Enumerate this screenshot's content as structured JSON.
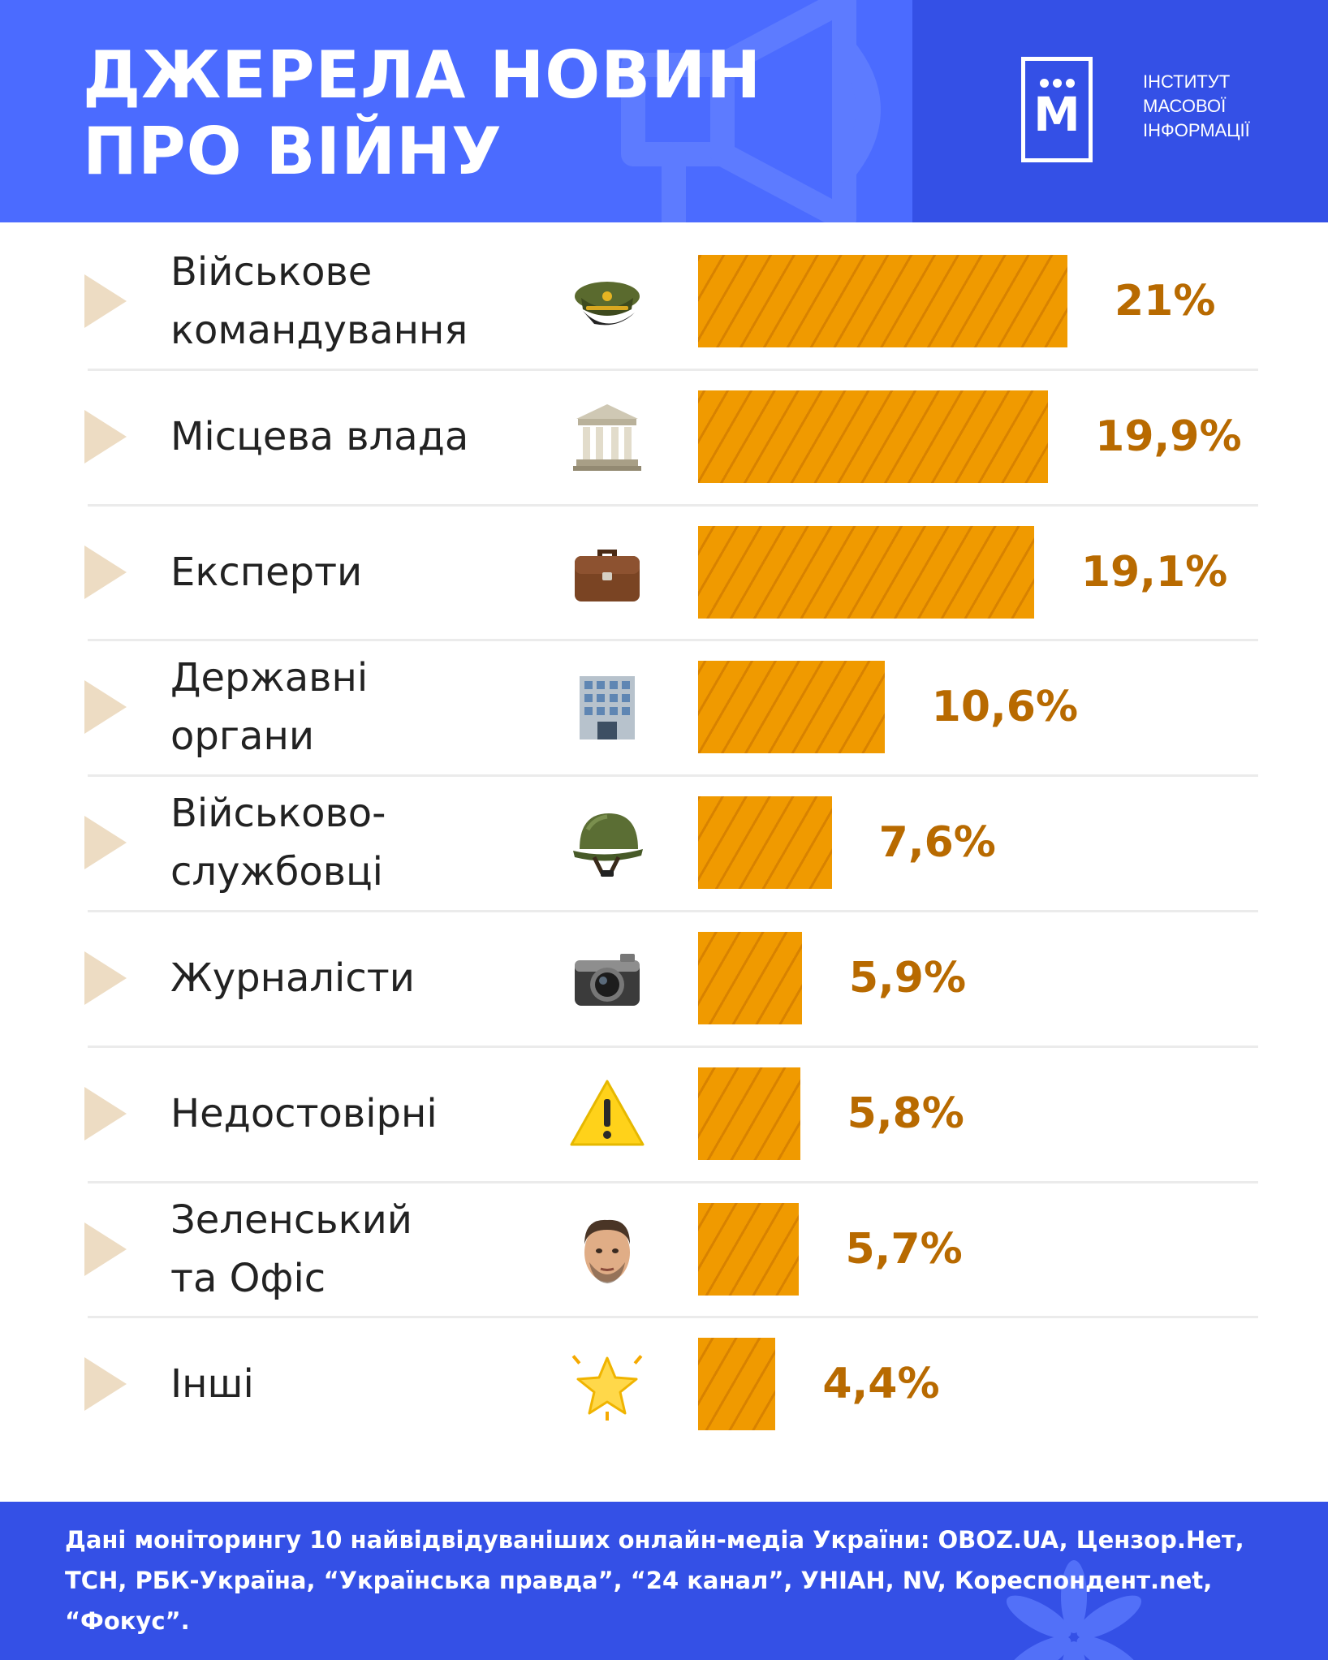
{
  "header": {
    "title_line1": "ДЖЕРЕЛА НОВИН",
    "title_line2": "ПРО ВІЙНУ",
    "logo_letter": "М",
    "logo_line1": "ІНСТИТУТ",
    "logo_line2": "МАСОВОЇ",
    "logo_line3": "ІНФОРМАЦІЇ"
  },
  "colors": {
    "header_blue": "#4b6bff",
    "footer_blue": "#3450e6",
    "bar_orange": "#f09a00",
    "value_brown": "#b86a00",
    "triangle_beige": "#eddcc3"
  },
  "chart_data": {
    "type": "bar",
    "orientation": "horizontal",
    "categories": [
      "Військове\nкомандування",
      "Місцева влада",
      "Експерти",
      "Державні\nоргани",
      "Військово-\nслужбовці",
      "Журналісти",
      "Недостовірні",
      "Зеленський\nта Офіс",
      "Інші"
    ],
    "values": [
      21,
      19.9,
      19.1,
      10.6,
      7.6,
      5.9,
      5.8,
      5.7,
      4.4
    ],
    "value_labels": [
      "21%",
      "19,9%",
      "19,1%",
      "10,6%",
      "7,6%",
      "5,9%",
      "5,8%",
      "5,7%",
      "4,4%"
    ],
    "icons": [
      "military-cap-icon",
      "government-building-icon",
      "briefcase-icon",
      "office-building-icon",
      "military-helmet-icon",
      "camera-icon",
      "warning-icon",
      "person-face-icon",
      "star-icon"
    ],
    "unit": "%",
    "grid": false
  },
  "footer": {
    "note": "Дані моніторингу 10 найвідвідуваніших онлайн-медіа України: OBOZ.UA, Цензор.Нет, ТСН, РБК-Україна, “Українська правда”, “24 канал”, УНІАН, NV, Кореспондент.net, “Фокус”."
  }
}
